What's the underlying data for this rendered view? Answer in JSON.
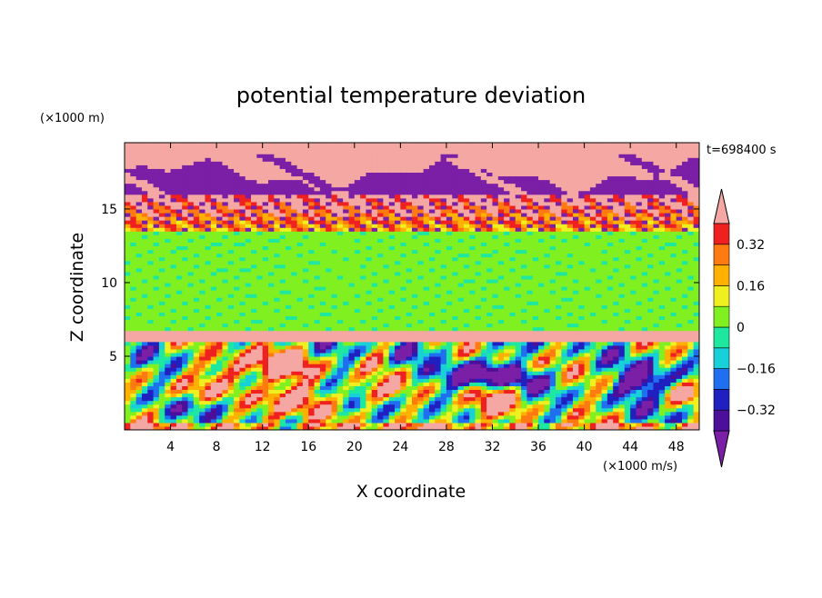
{
  "chart_data": {
    "type": "heatmap",
    "title": "potential temperature deviation",
    "xlabel": "X coordinate",
    "ylabel": "Z coordinate",
    "x_unit": "(×1000 m/s)",
    "y_unit": "(×1000 m)",
    "time_label": "t=698400 s",
    "xlim": [
      0,
      50
    ],
    "ylim": [
      0,
      19.5
    ],
    "x_ticks": [
      4,
      8,
      12,
      16,
      20,
      24,
      28,
      32,
      36,
      40,
      44,
      48
    ],
    "y_ticks": [
      5,
      10,
      15
    ],
    "colorbar": {
      "levels": [
        -0.4,
        -0.32,
        -0.24,
        -0.16,
        -0.08,
        0,
        0.08,
        0.16,
        0.24,
        0.32,
        0.4
      ],
      "tick_values": [
        -0.32,
        -0.16,
        0,
        0.16,
        0.32
      ],
      "tick_labels": [
        "−0.32",
        "−0.16",
        "0",
        "0.16",
        "0.32"
      ],
      "under_color": "#7a1fa6",
      "over_color": "#f4a7a3",
      "colors": [
        "#4b0f9a",
        "#2020c0",
        "#1f6ff0",
        "#18d0d8",
        "#1ee8a0",
        "#80f020",
        "#f0f020",
        "#ffb000",
        "#ff7a10",
        "#ee2020"
      ]
    },
    "layers": [
      {
        "z": [
          0,
          6
        ],
        "pattern": "turbulent mixed boundary layer, values spanning the full range"
      },
      {
        "z": [
          6,
          6.8
        ],
        "pattern": "thin positive band (> 0.4)"
      },
      {
        "z": [
          6.8,
          13.5
        ],
        "pattern": "near-zero values (0 to 0.08)"
      },
      {
        "z": [
          13.5,
          16
        ],
        "pattern": "strong positive band with scattered negative cells"
      },
      {
        "z": [
          16,
          19.5
        ],
        "pattern": "alternating layers below −0.4 and above 0.4"
      }
    ]
  }
}
